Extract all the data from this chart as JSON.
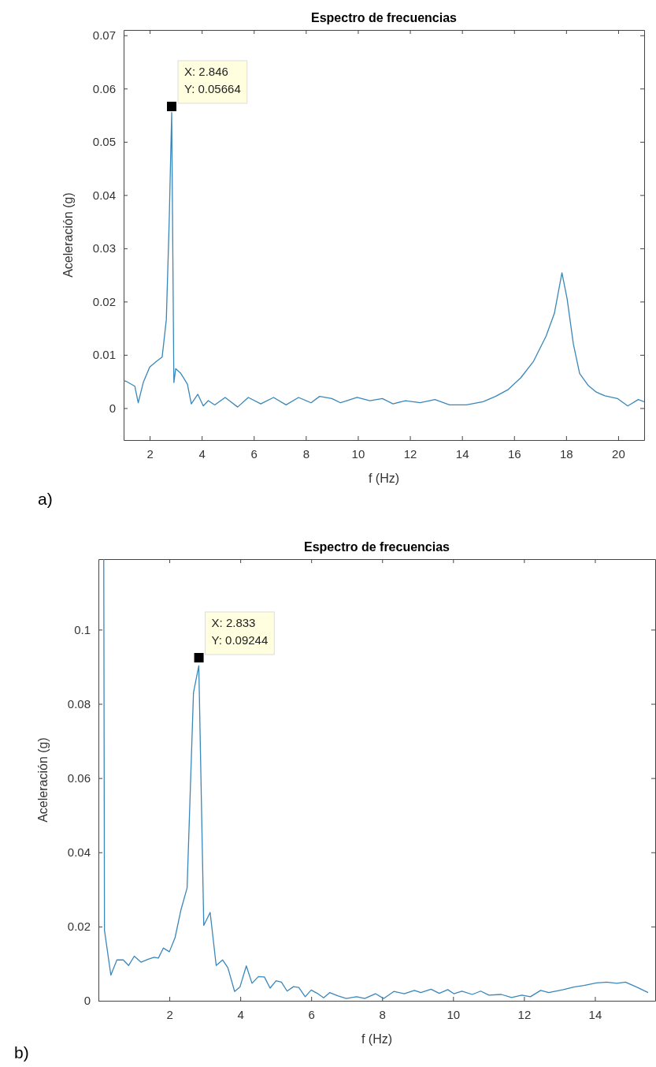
{
  "chart_data": [
    {
      "type": "line",
      "title": "Espectro de frecuencias",
      "xlabel": "f (Hz)",
      "ylabel": "Aceleración (g)",
      "xlim": [
        1,
        21
      ],
      "xticks": [
        2,
        4,
        6,
        8,
        10,
        12,
        14,
        16,
        18,
        20
      ],
      "ylim": [
        -0.006,
        0.071
      ],
      "yticks": [
        0,
        0.01,
        0.02,
        0.03,
        0.04,
        0.05,
        0.06,
        0.07
      ],
      "x": [
        1,
        1.07,
        1.43,
        1.56,
        1.76,
        2.0,
        2.24,
        2.48,
        2.64,
        2.75,
        2.846,
        2.93,
        3.0,
        3.2,
        3.45,
        3.6,
        3.85,
        4.06,
        4.25,
        4.5,
        4.9,
        5.38,
        5.79,
        6.27,
        6.76,
        7.24,
        7.72,
        8.2,
        8.53,
        9.0,
        9.33,
        9.97,
        10.46,
        10.94,
        11.35,
        11.83,
        12.39,
        12.96,
        13.52,
        14.17,
        14.81,
        15.29,
        15.78,
        16.26,
        16.75,
        17.23,
        17.55,
        17.84,
        18.04,
        18.28,
        18.52,
        18.84,
        19.16,
        19.49,
        19.97,
        20.37,
        20.77,
        21.0
      ],
      "series": [
        {
          "color": "#3a87ba",
          "values": [
            0.005,
            0.0051,
            0.0041,
            0.001,
            0.0049,
            0.0077,
            0.0087,
            0.0096,
            0.0166,
            0.035,
            0.0555,
            0.0048,
            0.0074,
            0.0065,
            0.0045,
            0.0008,
            0.0026,
            0.0004,
            0.0014,
            0.0006,
            0.002,
            0.0002,
            0.002,
            0.0008,
            0.002,
            0.0006,
            0.002,
            0.001,
            0.0022,
            0.0018,
            0.001,
            0.002,
            0.0014,
            0.0018,
            0.0008,
            0.0014,
            0.001,
            0.0016,
            0.0006,
            0.0006,
            0.0012,
            0.0022,
            0.0035,
            0.0057,
            0.0088,
            0.0135,
            0.0178,
            0.0254,
            0.0205,
            0.012,
            0.0065,
            0.0043,
            0.003,
            0.0023,
            0.0018,
            0.0004,
            0.0016,
            0.0012
          ]
        }
      ],
      "annotations": [
        {
          "text": "X: 2.846\nY: 0.05664",
          "x": 2.846,
          "y": 0.05664
        },
        "a)"
      ]
    },
    {
      "type": "line",
      "title": "Espectro de frecuencias",
      "xlabel": "f (Hz)",
      "ylabel": "Aceleración (g)",
      "xlim": [
        0,
        15.7
      ],
      "xticks": [
        2,
        4,
        6,
        8,
        10,
        12,
        14
      ],
      "ylim": [
        0,
        0.119
      ],
      "yticks": [
        0,
        0.02,
        0.04,
        0.06,
        0.08,
        0.1
      ],
      "x": [
        0.15,
        0.17,
        0.35,
        0.52,
        0.7,
        0.85,
        1.01,
        1.2,
        1.4,
        1.57,
        1.69,
        1.83,
        2.0,
        2.16,
        2.33,
        2.5,
        2.68,
        2.83,
        2.97,
        3.15,
        3.32,
        3.5,
        3.65,
        3.84,
        3.99,
        4.17,
        4.33,
        4.51,
        4.68,
        4.84,
        5.01,
        5.16,
        5.32,
        5.5,
        5.65,
        5.83,
        6.0,
        6.17,
        6.35,
        6.52,
        6.76,
        6.99,
        7.28,
        7.51,
        7.81,
        8.04,
        8.33,
        8.62,
        8.91,
        9.09,
        9.38,
        9.61,
        9.85,
        10.02,
        10.25,
        10.54,
        10.78,
        11.01,
        11.36,
        11.65,
        11.94,
        12.18,
        12.47,
        12.7,
        13.11,
        13.4,
        13.69,
        14.04,
        14.33,
        14.62,
        14.86,
        15.2,
        15.5
      ],
      "series": [
        {
          "color": "#3a87ba",
          "values": [
            0.119,
            0.019,
            0.0069,
            0.011,
            0.011,
            0.0095,
            0.012,
            0.0104,
            0.0112,
            0.0117,
            0.0115,
            0.0142,
            0.0132,
            0.017,
            0.0246,
            0.0304,
            0.083,
            0.0903,
            0.0203,
            0.0238,
            0.0095,
            0.011,
            0.0089,
            0.0025,
            0.0037,
            0.0094,
            0.0047,
            0.0065,
            0.0064,
            0.0034,
            0.0054,
            0.005,
            0.0026,
            0.0038,
            0.0036,
            0.0011,
            0.0029,
            0.002,
            0.0008,
            0.0022,
            0.0013,
            0.0006,
            0.0011,
            0.0006,
            0.0019,
            0.0006,
            0.0025,
            0.0019,
            0.0028,
            0.0022,
            0.0031,
            0.002,
            0.003,
            0.0019,
            0.0026,
            0.0017,
            0.0026,
            0.0015,
            0.0017,
            0.0009,
            0.0015,
            0.0011,
            0.0028,
            0.0022,
            0.003,
            0.0037,
            0.0041,
            0.0048,
            0.005,
            0.0047,
            0.005,
            0.0036,
            0.0022
          ]
        }
      ],
      "annotations": [
        {
          "text": "X: 2.833\nY: 0.09244",
          "x": 2.833,
          "y": 0.09244
        },
        "b)"
      ]
    }
  ]
}
